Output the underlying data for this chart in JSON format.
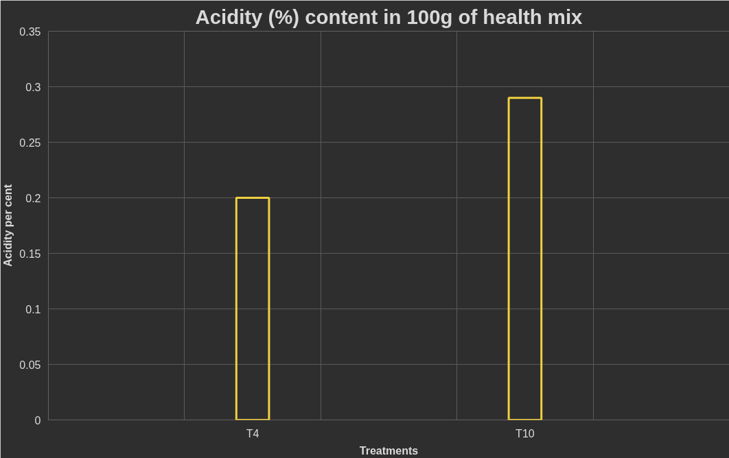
{
  "chart_data": {
    "type": "bar",
    "title": "Acidity (%) content in 100g of health mix",
    "xlabel": "Treatments",
    "ylabel": "Acidity per cent",
    "categories": [
      "T4",
      "T10"
    ],
    "values": [
      0.2,
      0.29
    ],
    "color": "#f0d040",
    "ylim": [
      0,
      0.35
    ],
    "yticks": [
      0,
      0.05,
      0.1,
      0.15,
      0.2,
      0.25,
      0.3,
      0.35
    ],
    "grid": true
  }
}
